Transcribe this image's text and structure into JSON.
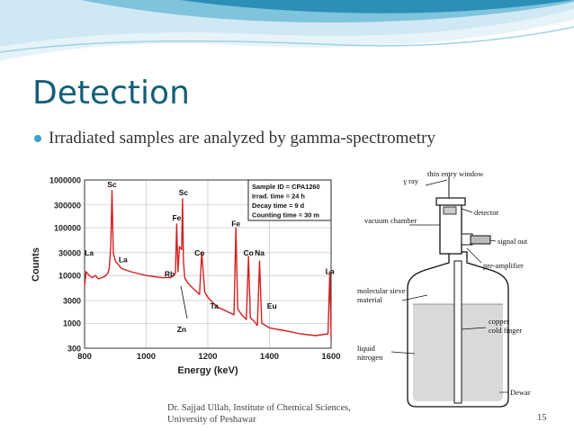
{
  "slide": {
    "title": "Detection",
    "bullet": "Irradiated samples are analyzed by gamma-spectrometry",
    "footer": {
      "line1": "Dr. Sajjad Ullah, Institute of Chemical Sciences,",
      "line2": "University of Peshawar"
    },
    "page_number": "15"
  },
  "colors": {
    "title": "#155f78",
    "bullet": "#3aa3c4",
    "spectrum_line": "#d42020",
    "wave_light": "#cfe8f3",
    "wave_dark": "#2b8fb8"
  },
  "chart_data": {
    "type": "line",
    "xlabel": "Energy (keV)",
    "ylabel": "Counts",
    "xlim": [
      800,
      1600
    ],
    "ylim": [
      300,
      1000000
    ],
    "yscale": "log",
    "xticks": [
      "800",
      "1000",
      "1200",
      "1400",
      "1600"
    ],
    "yticks": [
      "300",
      "1000",
      "3000",
      "10000",
      "30000",
      "100000",
      "300000",
      "1000000"
    ],
    "series": [
      {
        "x": [
          800,
          805,
          815,
          825,
          835,
          845,
          855,
          865,
          875,
          880,
          885,
          889,
          893,
          900,
          920,
          950,
          1000,
          1050,
          1080,
          1095,
          1099,
          1103,
          1108,
          1115,
          1118,
          1121,
          1125,
          1135,
          1150,
          1173,
          1180,
          1190,
          1200,
          1221,
          1230,
          1260,
          1285,
          1291,
          1297,
          1310,
          1325,
          1332,
          1338,
          1350,
          1361,
          1368,
          1375,
          1400,
          1450,
          1500,
          1550,
          1590,
          1596,
          1600
        ],
        "y": [
          6000,
          12000,
          10000,
          9000,
          10000,
          8500,
          9000,
          9500,
          11000,
          14000,
          40000,
          600000,
          30000,
          20000,
          14000,
          12000,
          10000,
          9000,
          9000,
          11000,
          120000,
          12000,
          40000,
          35000,
          400000,
          20000,
          9000,
          7000,
          5500,
          4000,
          30000,
          4500,
          3500,
          2500,
          2200,
          1800,
          1500,
          100000,
          2000,
          1500,
          1200,
          25000,
          1300,
          1100,
          900,
          20000,
          1000,
          800,
          700,
          600,
          550,
          600,
          12000,
          500
        ]
      }
    ],
    "annotations": [
      {
        "label": "Sc",
        "x": 889,
        "y": 600000
      },
      {
        "label": "Sc",
        "x": 1121,
        "y": 400000
      },
      {
        "label": "Fe",
        "x": 1099,
        "y": 120000
      },
      {
        "label": "La",
        "x": 815,
        "y": 22000
      },
      {
        "label": "La",
        "x": 925,
        "y": 16000
      },
      {
        "label": "Rb",
        "x": 1076,
        "y": 8000
      },
      {
        "label": "Co",
        "x": 1173,
        "y": 22000
      },
      {
        "label": "Fe",
        "x": 1291,
        "y": 90000
      },
      {
        "label": "Co",
        "x": 1332,
        "y": 22000
      },
      {
        "label": "Na",
        "x": 1368,
        "y": 22000
      },
      {
        "label": "Ta",
        "x": 1221,
        "y": 1700
      },
      {
        "label": "Eu",
        "x": 1408,
        "y": 1700
      },
      {
        "label": "La",
        "x": 1596,
        "y": 9000
      },
      {
        "label": "Zn",
        "x": 1115,
        "y": 550
      }
    ],
    "legend_box": [
      "Sample ID = CPA1260",
      "Irrad. time    = 24 h",
      "Decay time   =  9 d",
      "Counting time = 30 m"
    ]
  },
  "detector_diagram": {
    "labels": {
      "gamma": "γ ray",
      "entry_window": "thin entry window",
      "detector": "detector",
      "vacuum": "vacuum chamber",
      "signal": "signal out",
      "preamp": "pre-amplifier",
      "sieve1": "molecular sieve",
      "sieve2": "material",
      "nitrogen1": "liquid",
      "nitrogen2": "nitrogen",
      "finger1": "copper",
      "finger2": "cold finger",
      "dewar": "Dewar"
    }
  }
}
